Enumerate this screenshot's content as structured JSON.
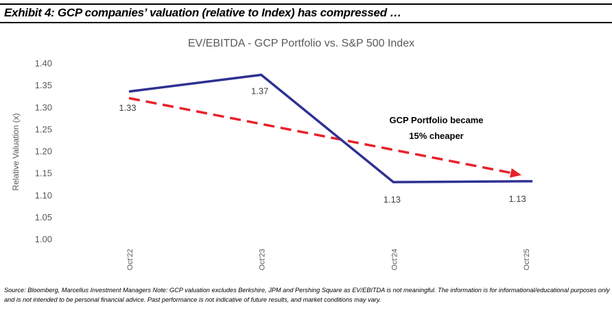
{
  "exhibit_title": "Exhibit 4: GCP companies’ valuation (relative to Index) has compressed …",
  "source_note": "Source: Bloomberg, Marcellus Investment Managers Note: GCP valuation excludes Berkshire, JPM and Pershing Square as EV/EBITDA is not meaningful. The information is for informational/educational purposes only and is not intended to be personal financial advice. Past performance is not indicative of future results, and market conditions may vary.",
  "chart_data": {
    "type": "line",
    "title": "EV/EBITDA - GCP Portfolio  vs. S&P 500 Index",
    "xlabel": "",
    "ylabel": "Relative Valuation (x)",
    "ylim": [
      1.0,
      1.4
    ],
    "yticks": [
      "1.00",
      "1.05",
      "1.10",
      "1.15",
      "1.20",
      "1.25",
      "1.30",
      "1.35",
      "1.40"
    ],
    "categories": [
      "Oct'22",
      "Oct'23",
      "Oct'24",
      "Oct'25"
    ],
    "grid": false,
    "series": [
      {
        "values": [
          1.335,
          1.373,
          1.129,
          1.131
        ],
        "labels": [
          "1.33",
          "1.37",
          "1.13",
          "1.13"
        ],
        "color": "#2e3192"
      }
    ],
    "trend_arrow": {
      "from": 1.32,
      "to": 1.145,
      "color": "#e8212a",
      "style": "dashed"
    },
    "annotation": [
      "GCP Portfolio became",
      "15% cheaper"
    ]
  }
}
